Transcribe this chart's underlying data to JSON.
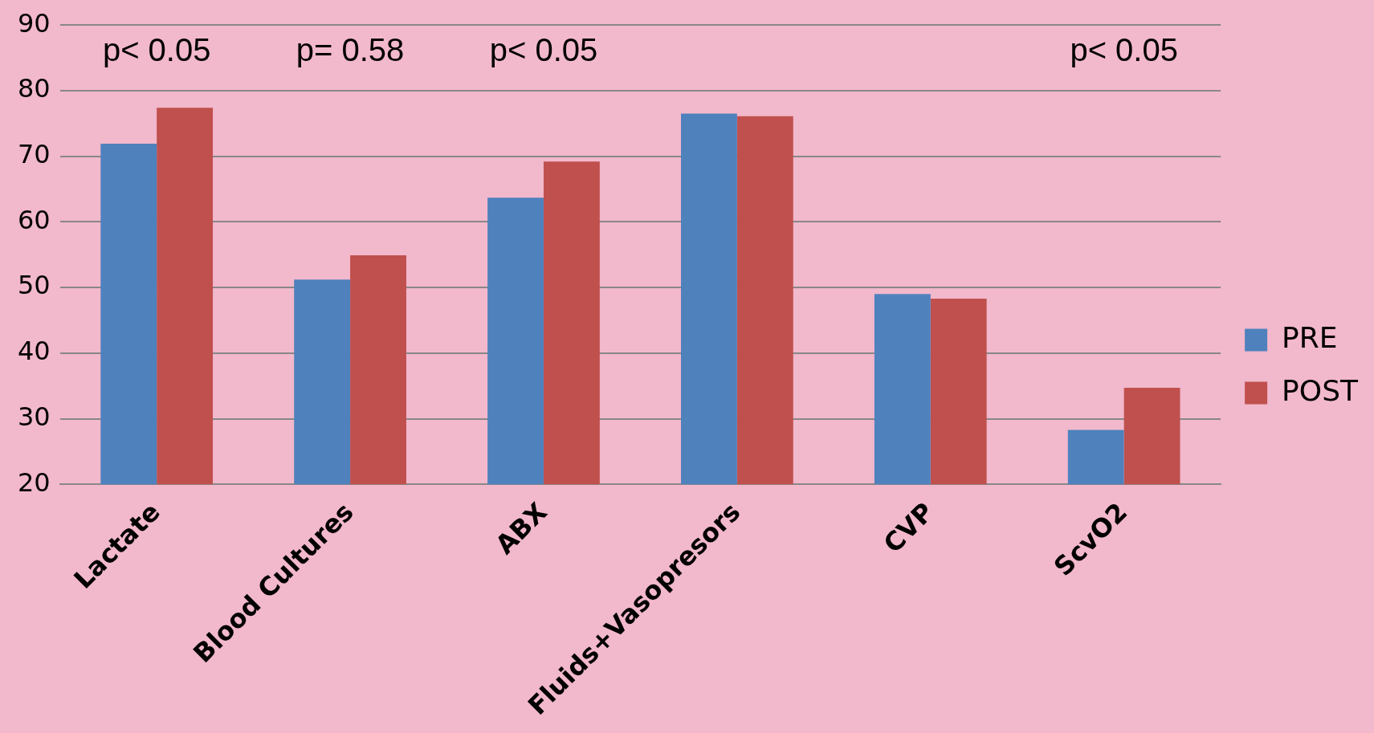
{
  "chart_data": {
    "type": "bar",
    "categories": [
      "Lactate",
      "Blood Cultures",
      "ABX",
      "Fluids+Vasopresors",
      "CVP",
      "ScvO2"
    ],
    "series": [
      {
        "name": "PRE",
        "color": "#4f81bd",
        "values": [
          71.9,
          51.2,
          63.7,
          76.5,
          49.0,
          28.3
        ]
      },
      {
        "name": "POST",
        "color": "#c0504d",
        "values": [
          77.4,
          54.9,
          69.2,
          76.1,
          48.3,
          34.7
        ]
      }
    ],
    "ylim": [
      20,
      90
    ],
    "yticks": [
      20,
      30,
      40,
      50,
      60,
      70,
      80,
      90
    ],
    "grid": "y",
    "legend": "right",
    "annotations": [
      "p< 0.05",
      "p= 0.58",
      "p< 0.05",
      "p< 0.05"
    ]
  }
}
